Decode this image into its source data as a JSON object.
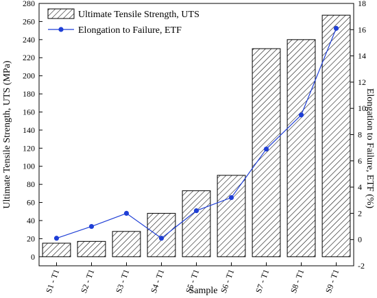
{
  "chart_data": {
    "type": "bar",
    "categories": [
      "S1 - T1",
      "S2 - T1",
      "S3 - T1",
      "S4 - T1",
      "S5 - T1",
      "S6 - T1",
      "S7 - T1",
      "S8 - T1",
      "S9 - T1"
    ],
    "xlabel": "Sample",
    "ylabel_left": "Ultimate Tensile Strength, UTS (MPa)",
    "ylabel_right": "Elongation to Failure, ETF (%)",
    "ylim_left": [
      -10,
      280
    ],
    "yticks_left": [
      0,
      20,
      40,
      60,
      80,
      100,
      120,
      140,
      160,
      180,
      200,
      220,
      240,
      260,
      280
    ],
    "ylim_right": [
      -2,
      18
    ],
    "yticks_right": [
      -2,
      0,
      2,
      4,
      6,
      8,
      10,
      12,
      14,
      16,
      18
    ],
    "grid": false,
    "legend_position": "top-left",
    "series": [
      {
        "name": "Ultimate Tensile Strength, UTS",
        "type": "bar",
        "axis": "left",
        "pattern": "hatched",
        "values": [
          15,
          17,
          28,
          48,
          73,
          90,
          230,
          240,
          267
        ]
      },
      {
        "name": "Elongation to Failure, ETF",
        "type": "line",
        "axis": "right",
        "color": "#1f3fd6",
        "values": [
          0.1,
          1.0,
          2.0,
          0.1,
          2.2,
          3.2,
          6.9,
          9.5,
          16.1
        ]
      }
    ]
  }
}
